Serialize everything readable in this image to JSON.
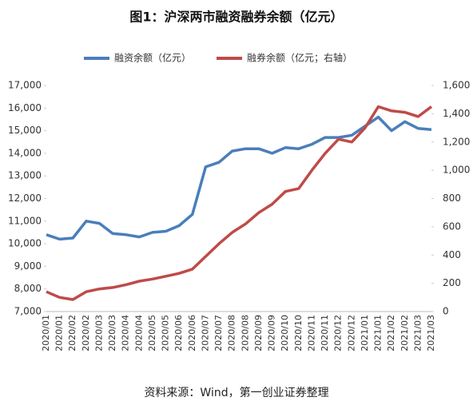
{
  "chart_data": {
    "type": "line",
    "title": "图1：沪深两市融资融券余额（亿元）",
    "source": "资料来源：Wind，第一创业证券整理",
    "categories": [
      "2020/01",
      "2020/01",
      "2020/02",
      "2020/02",
      "2020/03",
      "2020/03",
      "2020/04",
      "2020/04",
      "2020/05",
      "2020/05",
      "2020/06",
      "2020/06",
      "2020/07",
      "2020/07",
      "2020/08",
      "2020/08",
      "2020/09",
      "2020/09",
      "2020/10",
      "2020/10",
      "2020/11",
      "2020/11",
      "2020/12",
      "2020/12",
      "2021/01",
      "2021/01",
      "2021/02",
      "2021/02",
      "2021/03",
      "2021/03"
    ],
    "series": [
      {
        "name": "融资余额（亿元）",
        "color": "#4a7ebb",
        "axis": "y",
        "values": [
          10400,
          10200,
          10250,
          11000,
          10900,
          10450,
          10400,
          10300,
          10500,
          10550,
          10800,
          11300,
          13400,
          13600,
          14100,
          14200,
          14200,
          14000,
          14250,
          14200,
          14400,
          14700,
          14700,
          14800,
          15200,
          15600,
          15000,
          15400,
          15100,
          15050
        ]
      },
      {
        "name": "融券余额（亿元；右轴）",
        "color": "#be4b48",
        "axis": "y2",
        "values": [
          140,
          100,
          85,
          140,
          160,
          170,
          190,
          215,
          230,
          250,
          270,
          300,
          390,
          480,
          560,
          620,
          700,
          760,
          850,
          870,
          1000,
          1120,
          1220,
          1200,
          1300,
          1450,
          1420,
          1410,
          1380,
          1450
        ]
      }
    ],
    "ylim": [
      7000,
      17000
    ],
    "yticks": [
      {
        "value": 7000,
        "label": "7,000"
      },
      {
        "value": 8000,
        "label": "8,000"
      },
      {
        "value": 9000,
        "label": "9,000"
      },
      {
        "value": 10000,
        "label": "10,000"
      },
      {
        "value": 11000,
        "label": "11,000"
      },
      {
        "value": 12000,
        "label": "12,000"
      },
      {
        "value": 13000,
        "label": "13,000"
      },
      {
        "value": 14000,
        "label": "14,000"
      },
      {
        "value": 15000,
        "label": "15,000"
      },
      {
        "value": 16000,
        "label": "16,000"
      },
      {
        "value": 17000,
        "label": "17,000"
      }
    ],
    "y2lim": [
      0,
      1600
    ],
    "y2ticks": [
      0,
      200,
      400,
      600,
      800,
      {
        "value": 1000,
        "label": "1,000"
      },
      {
        "value": 1200,
        "label": "1,200"
      },
      {
        "value": 1400,
        "label": "1,400"
      },
      {
        "value": 1600,
        "label": "1,600"
      }
    ],
    "grid": false
  }
}
